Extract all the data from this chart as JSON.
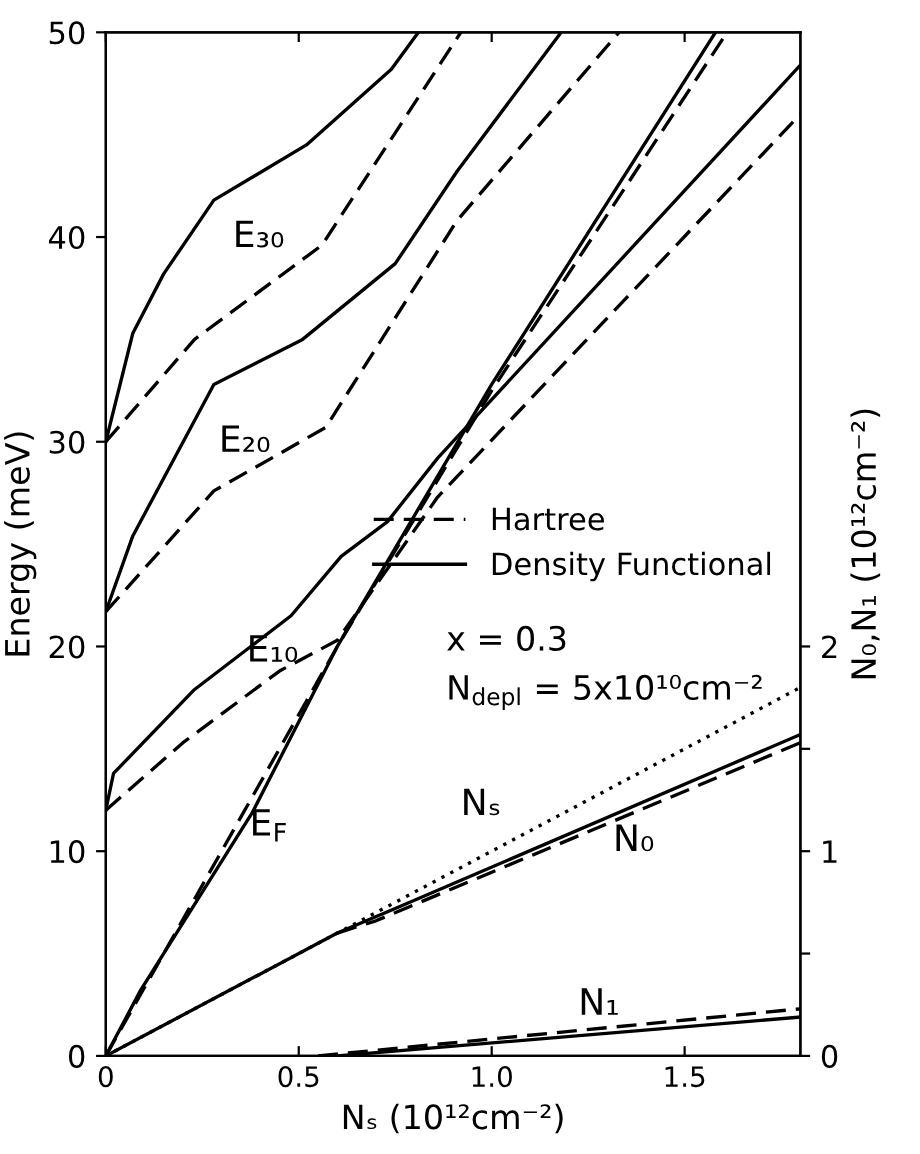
{
  "chart_data": {
    "type": "line",
    "xlabel": "Nₛ (10¹²cm⁻²)",
    "ylabel": "Energy (meV)",
    "y2label": "N₀,N₁ (10¹²cm⁻²)",
    "xlim": [
      0,
      1.8
    ],
    "xticks": [
      0,
      0.5,
      {
        "value": 1.0,
        "label": "1.0"
      },
      1.5
    ],
    "ylim": [
      0,
      50
    ],
    "yticks": [
      0,
      10,
      20,
      30,
      40,
      50
    ],
    "y2lim": [
      0,
      5
    ],
    "y2ticks": [
      0,
      {
        "value": 0.5,
        "label": null
      },
      1,
      {
        "value": 1.5,
        "label": null
      },
      2
    ],
    "grid": false,
    "marker": "none",
    "legend": "right",
    "series": [
      {
        "name": "Hartree",
        "color": "#000000",
        "line_style": "dashed",
        "x": [
          0,
          0.23,
          0.56,
          0.92
        ],
        "values": [
          30,
          35.0,
          39.6,
          50
        ]
      },
      {
        "name": "Density Functional",
        "color": "#000000",
        "line_style": "solid",
        "x": [
          0,
          0.07,
          0.15,
          0.28,
          0.52,
          0.74,
          0.81
        ],
        "values": [
          30,
          35.3,
          38.2,
          41.8,
          44.5,
          48.2,
          50
        ]
      },
      {
        "color": "#000000",
        "line_style": "solid",
        "x": [
          0,
          0.07,
          0.28,
          0.51,
          0.75,
          0.91,
          1.18
        ],
        "values": [
          21.7,
          25.4,
          32.8,
          35.0,
          38.7,
          43.2,
          50
        ]
      },
      {
        "color": "#000000",
        "line_style": "dashed",
        "x": [
          0,
          0.28,
          0.57,
          0.91,
          1.33
        ],
        "values": [
          21.7,
          27.6,
          30.7,
          40.8,
          50
        ]
      },
      {
        "color": "#000000",
        "line_style": "solid",
        "x": [
          0,
          0.02,
          0.23,
          0.48,
          0.61,
          0.73,
          0.86,
          1.8
        ],
        "values": [
          12,
          13.8,
          17.9,
          21.5,
          24.4,
          26.1,
          29.2,
          48.4
        ]
      },
      {
        "color": "#000000",
        "line_style": "dashed",
        "x": [
          0,
          0.2,
          0.45,
          0.6,
          0.86,
          1.8
        ],
        "values": [
          12,
          15.3,
          18.8,
          20.3,
          27.3,
          46.0
        ]
      },
      {
        "color": "#000000",
        "line_style": "solid",
        "x": [
          0,
          0.09,
          0.38,
          0.6,
          1.0,
          1.58
        ],
        "values": [
          0,
          3.2,
          11.9,
          20,
          32.8,
          50
        ]
      },
      {
        "color": "#000000",
        "line_style": "dashed",
        "x": [
          0,
          0.6,
          1.0,
          1.61
        ],
        "values": [
          0,
          20,
          32.5,
          50
        ]
      },
      {
        "color": "#000000",
        "line_style": "dotted",
        "axis": "y2",
        "x": [
          0,
          1.8
        ],
        "values": [
          0,
          1.8
        ]
      },
      {
        "color": "#000000",
        "line_style": "solid",
        "axis": "y2",
        "x": [
          0,
          0.6,
          0.75,
          1.8
        ],
        "values": [
          0,
          0.6,
          0.72,
          1.57
        ]
      },
      {
        "color": "#000000",
        "line_style": "dashed",
        "axis": "y2",
        "x": [
          0.6,
          0.7,
          1.8
        ],
        "values": [
          0.6,
          0.66,
          1.53
        ]
      },
      {
        "color": "#000000",
        "line_style": "solid",
        "axis": "y2",
        "x": [
          0.6,
          1.8
        ],
        "values": [
          0,
          0.19
        ]
      },
      {
        "color": "#000000",
        "line_style": "dashed",
        "axis": "y2",
        "x": [
          0.55,
          1.8
        ],
        "values": [
          0,
          0.23
        ]
      }
    ],
    "annotations": [
      "E₃₀",
      "E₂₀",
      "E₁₀",
      "E$_{F}$",
      "Nₛ",
      "N₀",
      "N₁",
      "x = 0.3",
      "N$_{depl}$ = 5x10¹⁰cm⁻²"
    ]
  }
}
